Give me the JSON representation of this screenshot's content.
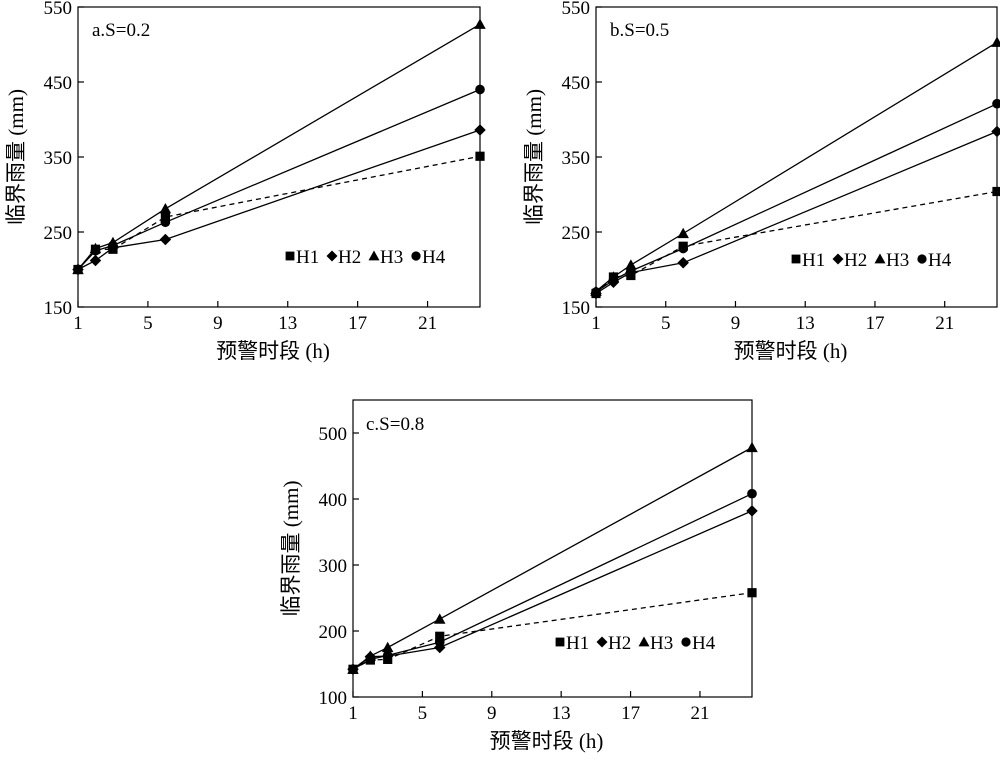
{
  "colors": {
    "line": "#000000",
    "background": "#ffffff"
  },
  "chart_data": [
    {
      "type": "line",
      "panel_label": "a.S=0.2",
      "xlabel": "预警时段 (h)",
      "ylabel": "临界雨量 (mm)",
      "xlim": [
        1,
        24
      ],
      "ylim": [
        150,
        550
      ],
      "xticks": [
        1,
        5,
        9,
        13,
        17,
        21
      ],
      "yticks": [
        150,
        250,
        350,
        450,
        550
      ],
      "x": [
        1,
        2,
        3,
        6,
        24
      ],
      "legend_position": "lower-right",
      "series": [
        {
          "name": "H1",
          "marker": "square",
          "dashed": true,
          "values": [
            200,
            227,
            227,
            270,
            351
          ]
        },
        {
          "name": "H2",
          "marker": "diamond",
          "dashed": false,
          "values": [
            200,
            212,
            229,
            240,
            386
          ]
        },
        {
          "name": "H3",
          "marker": "triangle",
          "dashed": false,
          "values": [
            200,
            228,
            236,
            281,
            527
          ]
        },
        {
          "name": "H4",
          "marker": "circle",
          "dashed": false,
          "values": [
            200,
            225,
            232,
            263,
            440
          ]
        }
      ]
    },
    {
      "type": "line",
      "panel_label": "b.S=0.5",
      "xlabel": "预警时段 (h)",
      "ylabel": "临界雨量 (mm)",
      "xlim": [
        1,
        24
      ],
      "ylim": [
        150,
        550
      ],
      "xticks": [
        1,
        5,
        9,
        13,
        17,
        21
      ],
      "yticks": [
        150,
        250,
        350,
        450,
        550
      ],
      "x": [
        1,
        2,
        3,
        6,
        24
      ],
      "legend_position": "lower-right",
      "series": [
        {
          "name": "H1",
          "marker": "square",
          "dashed": true,
          "values": [
            168,
            190,
            192,
            231,
            304
          ]
        },
        {
          "name": "H2",
          "marker": "diamond",
          "dashed": false,
          "values": [
            168,
            183,
            196,
            209,
            384
          ]
        },
        {
          "name": "H3",
          "marker": "triangle",
          "dashed": false,
          "values": [
            171,
            190,
            206,
            248,
            503
          ]
        },
        {
          "name": "H4",
          "marker": "circle",
          "dashed": false,
          "values": [
            170,
            186,
            198,
            228,
            421
          ]
        }
      ]
    },
    {
      "type": "line",
      "panel_label": "c.S=0.8",
      "xlabel": "预警时段 (h)",
      "ylabel": "临界雨量 (mm)",
      "xlim": [
        1,
        24
      ],
      "ylim": [
        100,
        550
      ],
      "xticks": [
        1,
        5,
        9,
        13,
        17,
        21
      ],
      "yticks": [
        100,
        200,
        300,
        400,
        500
      ],
      "x": [
        1,
        2,
        3,
        6,
        24
      ],
      "legend_position": "lower-right",
      "series": [
        {
          "name": "H1",
          "marker": "square",
          "dashed": true,
          "values": [
            142,
            156,
            157,
            192,
            258
          ]
        },
        {
          "name": "H2",
          "marker": "diamond",
          "dashed": false,
          "values": [
            142,
            161,
            162,
            175,
            382
          ]
        },
        {
          "name": "H3",
          "marker": "triangle",
          "dashed": false,
          "values": [
            142,
            162,
            175,
            218,
            478
          ]
        },
        {
          "name": "H4",
          "marker": "circle",
          "dashed": false,
          "values": [
            142,
            157,
            163,
            183,
            408
          ]
        }
      ]
    }
  ]
}
